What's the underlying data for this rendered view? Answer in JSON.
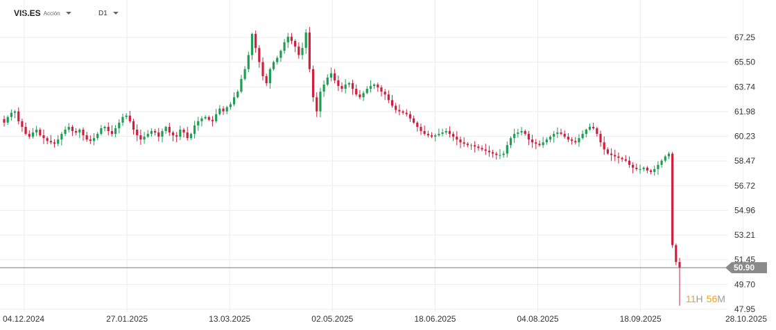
{
  "header": {
    "symbol": "VIS.ES",
    "instrument_type": "Acción",
    "timeframe": "D1"
  },
  "current_price": {
    "value": 50.9,
    "label": "50.90"
  },
  "countdown": {
    "hours": "11",
    "hours_unit": "H",
    "minutes": "56",
    "minutes_unit": "M"
  },
  "colors": {
    "up": "#1e9e52",
    "down": "#d01f3d",
    "grid": "#ececec",
    "price_line": "#777777",
    "price_tag": "#8a8a8a"
  },
  "chart_data": {
    "type": "candlestick",
    "title": "VIS.ES",
    "timeframe": "D1",
    "y_ticks": [
      "67.25",
      "65.50",
      "63.74",
      "61.98",
      "60.23",
      "58.47",
      "56.72",
      "54.96",
      "53.21",
      "51.45",
      "49.70",
      "47.95"
    ],
    "ylim": [
      47.95,
      67.25
    ],
    "x_ticks": [
      "04.12.2024",
      "27.01.2025",
      "13.03.2025",
      "02.05.2025",
      "18.06.2025",
      "04.08.2025",
      "18.09.2025",
      "28.10.2025"
    ],
    "last_price": 50.9,
    "close_series": [
      61.2,
      61.6,
      61.9,
      62.0,
      61.3,
      60.9,
      60.4,
      60.2,
      60.5,
      60.7,
      60.3,
      60.1,
      59.9,
      59.8,
      59.7,
      60.0,
      60.4,
      60.7,
      60.9,
      60.6,
      60.5,
      60.7,
      60.3,
      60.0,
      59.9,
      60.1,
      60.4,
      60.8,
      60.9,
      60.6,
      60.4,
      60.8,
      61.2,
      61.6,
      61.7,
      61.3,
      60.7,
      60.3,
      60.0,
      60.2,
      60.4,
      60.6,
      60.5,
      60.2,
      60.6,
      60.9,
      60.5,
      60.3,
      60.2,
      60.7,
      60.5,
      60.1,
      60.4,
      61.0,
      61.3,
      61.5,
      61.6,
      61.4,
      61.3,
      61.8,
      62.2,
      62.0,
      62.3,
      62.5,
      63.0,
      63.4,
      64.3,
      65.0,
      66.0,
      67.5,
      66.5,
      65.5,
      64.5,
      64.0,
      65.0,
      65.5,
      65.8,
      66.3,
      66.9,
      67.3,
      67.0,
      66.6,
      66.0,
      66.5,
      67.6,
      65.0,
      63.0,
      62.0,
      63.4,
      63.9,
      64.4,
      64.7,
      64.2,
      63.8,
      63.6,
      63.9,
      64.0,
      63.6,
      63.2,
      63.0,
      63.3,
      63.6,
      63.8,
      63.9,
      63.7,
      63.4,
      63.2,
      62.8,
      62.4,
      62.1,
      62.0,
      61.9,
      61.8,
      61.5,
      61.2,
      60.9,
      60.6,
      60.4,
      60.3,
      60.2,
      60.3,
      60.4,
      60.5,
      60.6,
      60.4,
      60.2,
      60.0,
      59.8,
      59.7,
      59.6,
      59.6,
      59.5,
      59.4,
      59.3,
      59.2,
      59.1,
      59.0,
      58.9,
      58.9,
      59.0,
      59.6,
      60.1,
      60.4,
      60.5,
      60.6,
      60.4,
      60.0,
      59.8,
      59.7,
      59.6,
      59.8,
      60.0,
      60.2,
      60.4,
      60.5,
      60.4,
      60.2,
      60.0,
      59.9,
      59.8,
      60.1,
      60.4,
      60.7,
      60.9,
      60.8,
      60.4,
      59.8,
      59.3,
      59.0,
      58.9,
      58.8,
      58.7,
      58.6,
      58.5,
      58.2,
      58.0,
      57.9,
      57.9,
      58.0,
      57.8,
      57.7,
      57.9,
      58.2,
      58.5,
      58.8,
      59.0,
      52.5,
      51.3,
      50.9
    ]
  }
}
